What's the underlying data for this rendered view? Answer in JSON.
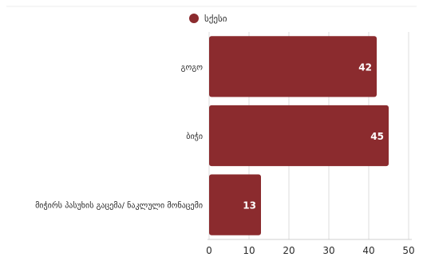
{
  "chart_data": {
    "type": "bar",
    "orientation": "horizontal",
    "categories": [
      "გოგო",
      "ბიჭი",
      "მიჭირს პასუხის გაცემა/ ნაკლული მონაცემი"
    ],
    "series": [
      {
        "name": "სქესი",
        "values": [
          42,
          45,
          13
        ],
        "color": "#8b2b2e"
      }
    ],
    "xlim": [
      0,
      50
    ],
    "xticks": [
      0,
      10,
      20,
      30,
      40,
      50
    ],
    "grid": true,
    "legend_position": "top"
  }
}
